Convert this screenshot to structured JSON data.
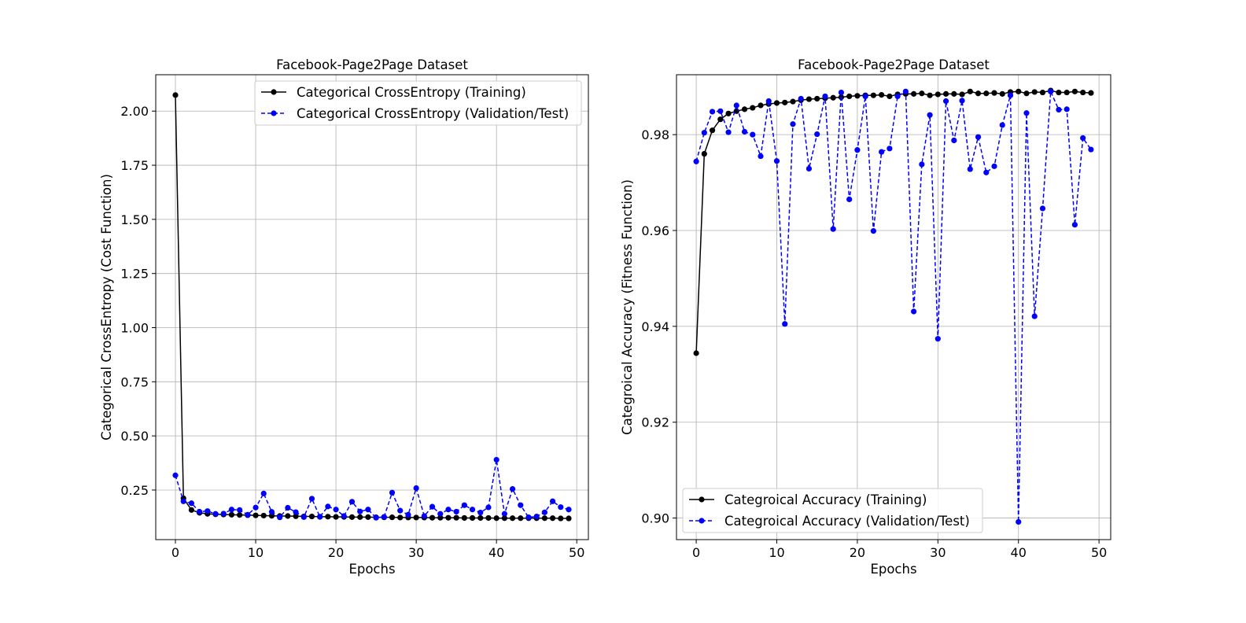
{
  "chart_data": [
    {
      "type": "line",
      "title": "Facebook-Page2Page Dataset",
      "xlabel": "Epochs",
      "ylabel": "Categorical CrossEntropy (Cost Function)",
      "xlim": [
        -2.45,
        51.45
      ],
      "ylim": [
        0.021,
        2.168
      ],
      "xticks": [
        0,
        10,
        20,
        30,
        40,
        50
      ],
      "yticks": [
        0.25,
        0.5,
        0.75,
        1.0,
        1.25,
        1.5,
        1.75,
        2.0
      ],
      "yticklabels": [
        "0.25",
        "0.50",
        "0.75",
        "1.00",
        "1.25",
        "1.50",
        "1.75",
        "2.00"
      ],
      "grid": true,
      "legend_position": "upper-right",
      "x": [
        0,
        1,
        2,
        3,
        4,
        5,
        6,
        7,
        8,
        9,
        10,
        11,
        12,
        13,
        14,
        15,
        16,
        17,
        18,
        19,
        20,
        21,
        22,
        23,
        24,
        25,
        26,
        27,
        28,
        29,
        30,
        31,
        32,
        33,
        34,
        35,
        36,
        37,
        38,
        39,
        40,
        41,
        42,
        43,
        44,
        45,
        46,
        47,
        48,
        49
      ],
      "series": [
        {
          "name": "Categorical CrossEntropy (Training)",
          "color": "#000000",
          "linestyle": "solid",
          "values": [
            2.074,
            0.212,
            0.158,
            0.145,
            0.14,
            0.138,
            0.137,
            0.136,
            0.135,
            0.134,
            0.133,
            0.132,
            0.131,
            0.13,
            0.13,
            0.129,
            0.128,
            0.128,
            0.127,
            0.127,
            0.126,
            0.126,
            0.125,
            0.125,
            0.125,
            0.124,
            0.124,
            0.124,
            0.123,
            0.123,
            0.123,
            0.123,
            0.122,
            0.122,
            0.122,
            0.122,
            0.121,
            0.121,
            0.121,
            0.121,
            0.12,
            0.12,
            0.12,
            0.12,
            0.12,
            0.12,
            0.12,
            0.12,
            0.119,
            0.119
          ]
        },
        {
          "name": "Categorical CrossEntropy (Validation/Test)",
          "color": "#0000ff",
          "linestyle": "dashed",
          "values": [
            0.318,
            0.198,
            0.189,
            0.15,
            0.153,
            0.14,
            0.141,
            0.16,
            0.158,
            0.136,
            0.169,
            0.234,
            0.149,
            0.124,
            0.168,
            0.148,
            0.125,
            0.21,
            0.126,
            0.174,
            0.16,
            0.13,
            0.196,
            0.151,
            0.16,
            0.122,
            0.126,
            0.238,
            0.155,
            0.136,
            0.259,
            0.13,
            0.173,
            0.14,
            0.16,
            0.15,
            0.18,
            0.16,
            0.146,
            0.17,
            0.39,
            0.14,
            0.255,
            0.18,
            0.124,
            0.128,
            0.147,
            0.198,
            0.171,
            0.16
          ]
        }
      ]
    },
    {
      "type": "line",
      "title": "Facebook-Page2Page Dataset",
      "xlabel": "Epochs",
      "ylabel": "Categroical Accuracy (Fitness Function)",
      "xlim": [
        -2.45,
        51.45
      ],
      "ylim": [
        0.8955,
        0.9925
      ],
      "xticks": [
        0,
        10,
        20,
        30,
        40,
        50
      ],
      "yticks": [
        0.9,
        0.92,
        0.94,
        0.96,
        0.98
      ],
      "yticklabels": [
        "0.90",
        "0.92",
        "0.94",
        "0.96",
        "0.98"
      ],
      "grid": true,
      "legend_position": "lower-left",
      "x": [
        0,
        1,
        2,
        3,
        4,
        5,
        6,
        7,
        8,
        9,
        10,
        11,
        12,
        13,
        14,
        15,
        16,
        17,
        18,
        19,
        20,
        21,
        22,
        23,
        24,
        25,
        26,
        27,
        28,
        29,
        30,
        31,
        32,
        33,
        34,
        35,
        36,
        37,
        38,
        39,
        40,
        41,
        42,
        43,
        44,
        45,
        46,
        47,
        48,
        49
      ],
      "series": [
        {
          "name": "Categroical Accuracy (Training)",
          "color": "#000000",
          "linestyle": "solid",
          "values": [
            0.9344,
            0.976,
            0.9809,
            0.9832,
            0.9844,
            0.9849,
            0.9853,
            0.9856,
            0.9861,
            0.9864,
            0.9866,
            0.9867,
            0.9869,
            0.9872,
            0.9874,
            0.9875,
            0.9876,
            0.9877,
            0.9878,
            0.988,
            0.9881,
            0.9882,
            0.9882,
            0.9883,
            0.988,
            0.9884,
            0.9885,
            0.9885,
            0.9886,
            0.9882,
            0.9884,
            0.9885,
            0.9885,
            0.9884,
            0.989,
            0.9886,
            0.9886,
            0.9887,
            0.9885,
            0.9889,
            0.989,
            0.9886,
            0.9889,
            0.9888,
            0.9892,
            0.9888,
            0.9888,
            0.989,
            0.9888,
            0.9887
          ]
        },
        {
          "name": "Categroical Accuracy (Validation/Test)",
          "color": "#0000ff",
          "linestyle": "dashed",
          "values": [
            0.9744,
            0.9804,
            0.9848,
            0.9849,
            0.9805,
            0.9861,
            0.9806,
            0.98,
            0.9755,
            0.987,
            0.9745,
            0.9405,
            0.9822,
            0.9875,
            0.9729,
            0.9801,
            0.988,
            0.9603,
            0.9888,
            0.9665,
            0.9768,
            0.988,
            0.9599,
            0.9764,
            0.9771,
            0.988,
            0.989,
            0.9431,
            0.9738,
            0.9841,
            0.9374,
            0.987,
            0.9788,
            0.9871,
            0.9728,
            0.9795,
            0.9721,
            0.9734,
            0.982,
            0.9882,
            0.8992,
            0.9845,
            0.9421,
            0.9646,
            0.989,
            0.9852,
            0.9853,
            0.9612,
            0.9793,
            0.9769
          ]
        }
      ]
    }
  ]
}
